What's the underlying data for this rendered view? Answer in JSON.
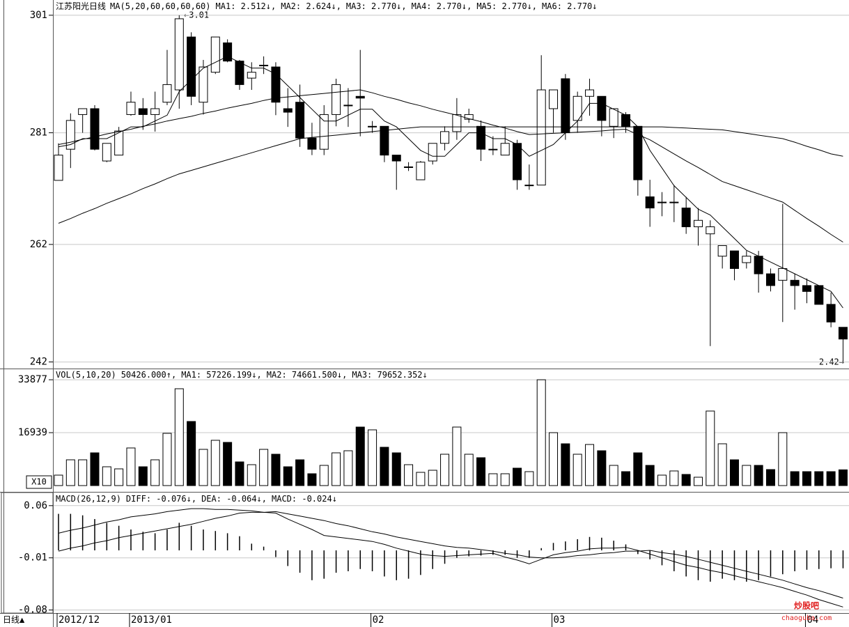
{
  "chart_data": [
    {
      "type": "candlestick",
      "title": "江苏阳光日线",
      "indicator": "MA(5,20,60,60,60,60)",
      "readouts": [
        "MA1: 2.512↓,",
        "MA2: 2.624↓,",
        "MA3: 2.770↓,",
        "MA4: 2.770↓,",
        "MA5: 2.770↓,",
        "MA6: 2.770↓"
      ],
      "annotations": [
        "←3.01",
        "2.42→"
      ],
      "categories": [
        "2012/12",
        null,
        null,
        null,
        null,
        null,
        "2013/01",
        null,
        null,
        null,
        null,
        null,
        null,
        null,
        null,
        null,
        null,
        null,
        null,
        null,
        null,
        null,
        null,
        null,
        null,
        null,
        "02",
        null,
        null,
        null,
        null,
        null,
        null,
        null,
        null,
        null,
        null,
        null,
        null,
        null,
        null,
        "03",
        null,
        null,
        null,
        null,
        null,
        null,
        null,
        null,
        null,
        null,
        null,
        null,
        null,
        null,
        null,
        null,
        null,
        null,
        null,
        null,
        "04",
        null,
        null,
        null
      ],
      "open": [
        2.729,
        2.782,
        2.841,
        2.851,
        2.762,
        2.772,
        2.841,
        2.851,
        2.841,
        2.862,
        2.883,
        2.973,
        2.862,
        2.913,
        2.963,
        2.932,
        2.903,
        2.925,
        2.922,
        2.851,
        2.862,
        2.801,
        2.782,
        2.841,
        2.857,
        2.872,
        2.821,
        2.821,
        2.772,
        2.752,
        2.73,
        2.762,
        2.792,
        2.812,
        2.833,
        2.821,
        2.782,
        2.772,
        2.792,
        2.721,
        2.721,
        2.851,
        2.902,
        2.831,
        2.872,
        2.872,
        2.821,
        2.841,
        2.821,
        2.701,
        2.692,
        2.692,
        2.682,
        2.65,
        2.638,
        2.6,
        2.609,
        2.589,
        2.6,
        2.57,
        2.559,
        2.559,
        2.55,
        2.55,
        2.518,
        2.479
      ],
      "high": [
        2.792,
        2.843,
        2.851,
        2.857,
        2.792,
        2.82,
        2.88,
        2.869,
        2.88,
        2.951,
        3.01,
        2.981,
        2.934,
        2.973,
        2.969,
        2.934,
        2.93,
        2.94,
        2.93,
        2.886,
        2.892,
        2.827,
        2.857,
        2.902,
        2.886,
        2.951,
        2.83,
        2.821,
        2.772,
        2.76,
        2.762,
        2.792,
        2.821,
        2.869,
        2.851,
        2.831,
        2.804,
        2.821,
        2.798,
        2.756,
        2.942,
        2.883,
        2.91,
        2.88,
        2.902,
        2.872,
        2.851,
        2.845,
        2.821,
        2.73,
        2.709,
        2.721,
        2.701,
        2.682,
        2.661,
        2.618,
        2.609,
        2.609,
        2.609,
        2.579,
        2.689,
        2.57,
        2.562,
        2.55,
        2.538,
        2.479
      ],
      "low": [
        2.729,
        2.75,
        2.81,
        2.78,
        2.76,
        2.772,
        2.839,
        2.815,
        2.812,
        2.857,
        2.851,
        2.857,
        2.841,
        2.91,
        2.93,
        2.883,
        2.883,
        2.91,
        2.84,
        2.82,
        2.786,
        2.772,
        2.772,
        2.821,
        2.82,
        2.804,
        2.81,
        2.76,
        2.713,
        2.745,
        2.73,
        2.756,
        2.78,
        2.798,
        2.827,
        2.762,
        2.772,
        2.772,
        2.713,
        2.713,
        2.721,
        2.81,
        2.798,
        2.81,
        2.839,
        2.804,
        2.801,
        2.81,
        2.703,
        2.65,
        2.668,
        2.658,
        2.638,
        2.618,
        2.447,
        2.579,
        2.559,
        2.579,
        2.538,
        2.54,
        2.488,
        2.509,
        2.52,
        2.518,
        2.479,
        2.42
      ],
      "close": [
        2.772,
        2.831,
        2.851,
        2.782,
        2.792,
        2.813,
        2.862,
        2.841,
        2.851,
        2.892,
        3.004,
        2.872,
        2.922,
        2.973,
        2.932,
        2.892,
        2.913,
        2.925,
        2.862,
        2.845,
        2.801,
        2.782,
        2.841,
        2.892,
        2.857,
        2.869,
        2.821,
        2.772,
        2.762,
        2.752,
        2.76,
        2.792,
        2.812,
        2.841,
        2.841,
        2.782,
        2.782,
        2.792,
        2.73,
        2.721,
        2.883,
        2.883,
        2.81,
        2.872,
        2.883,
        2.831,
        2.851,
        2.821,
        2.73,
        2.682,
        2.692,
        2.692,
        2.65,
        2.661,
        2.65,
        2.618,
        2.579,
        2.6,
        2.57,
        2.55,
        2.579,
        2.55,
        2.54,
        2.518,
        2.488,
        2.459
      ],
      "series": [
        {
          "color": "#000000",
          "values": [
            2.786,
            2.79,
            2.8,
            2.8,
            2.8,
            2.81,
            2.82,
            2.82,
            2.83,
            2.84,
            2.88,
            2.9,
            2.92,
            2.93,
            2.94,
            2.93,
            2.92,
            2.92,
            2.91,
            2.89,
            2.87,
            2.85,
            2.83,
            2.83,
            2.84,
            2.85,
            2.85,
            2.83,
            2.82,
            2.8,
            2.78,
            2.77,
            2.77,
            2.79,
            2.81,
            2.81,
            2.8,
            2.8,
            2.79,
            2.77,
            2.78,
            2.79,
            2.81,
            2.83,
            2.86,
            2.86,
            2.85,
            2.84,
            2.82,
            2.78,
            2.75,
            2.72,
            2.7,
            2.68,
            2.67,
            2.65,
            2.63,
            2.61,
            2.6,
            2.59,
            2.58,
            2.57,
            2.56,
            2.55,
            2.54,
            2.512
          ]
        },
        {
          "color": "#000000",
          "values": [
            2.79,
            2.794,
            2.799,
            2.803,
            2.808,
            2.812,
            2.816,
            2.821,
            2.825,
            2.83,
            2.834,
            2.838,
            2.843,
            2.847,
            2.852,
            2.856,
            2.86,
            2.865,
            2.869,
            2.871,
            2.873,
            2.875,
            2.877,
            2.879,
            2.881,
            2.883,
            2.878,
            2.872,
            2.867,
            2.861,
            2.856,
            2.85,
            2.845,
            2.84,
            2.834,
            2.829,
            2.823,
            2.818,
            2.812,
            2.807,
            2.808,
            2.809,
            2.81,
            2.811,
            2.812,
            2.813,
            2.815,
            2.816,
            2.807,
            2.798,
            2.786,
            2.774,
            2.762,
            2.751,
            2.739,
            2.727,
            2.72,
            2.713,
            2.706,
            2.699,
            2.692,
            2.678,
            2.664,
            2.651,
            2.637,
            2.624
          ]
        },
        {
          "color": "#000000",
          "values": [
            2.656,
            2.664,
            2.673,
            2.681,
            2.69,
            2.698,
            2.706,
            2.715,
            2.723,
            2.732,
            2.74,
            2.746,
            2.752,
            2.758,
            2.764,
            2.77,
            2.776,
            2.782,
            2.788,
            2.794,
            2.8,
            2.802,
            2.804,
            2.806,
            2.808,
            2.81,
            2.812,
            2.814,
            2.816,
            2.818,
            2.82,
            2.82,
            2.82,
            2.82,
            2.82,
            2.82,
            2.82,
            2.82,
            2.82,
            2.82,
            2.82,
            2.82,
            2.82,
            2.82,
            2.82,
            2.82,
            2.82,
            2.82,
            2.82,
            2.82,
            2.82,
            2.819,
            2.818,
            2.817,
            2.816,
            2.815,
            2.812,
            2.809,
            2.806,
            2.803,
            2.8,
            2.794,
            2.787,
            2.781,
            2.774,
            2.77
          ]
        }
      ],
      "ylim": [
        2.41,
        3.03
      ],
      "yticks": [
        {
          "value": 2.42,
          "label": "242"
        },
        {
          "value": 2.62,
          "label": "262"
        },
        {
          "value": 2.81,
          "label": "281"
        },
        {
          "value": 3.01,
          "label": "301"
        }
      ],
      "grid": true
    },
    {
      "type": "bar",
      "title": "VOL(5,10,20)",
      "readouts": [
        "50426.000↑,",
        "MA1: 57226.199↓,",
        "MA2: 74661.500↓,",
        "MA3: 79652.352↓"
      ],
      "unit_label": "X10",
      "values": [
        3345,
        8251,
        8251,
        10481,
        6021,
        5352,
        12042,
        6021,
        8251,
        16725,
        30997,
        20516,
        11596,
        14495,
        13826,
        7582,
        6690,
        11596,
        10035,
        6021,
        8251,
        3791,
        6467,
        10481,
        11150,
        18732,
        17840,
        12265,
        10481,
        6690,
        4237,
        4906,
        10035,
        18732,
        10035,
        8920,
        3791,
        3791,
        5575,
        4460,
        33877,
        16939,
        13380,
        10035,
        13157,
        11150,
        6467,
        4460,
        10481,
        6467,
        3345,
        4683,
        3568,
        2676,
        23861,
        13380,
        8251,
        6467,
        6467,
        5129,
        16939,
        4460,
        4460,
        4460,
        4460,
        5043
      ],
      "ylim": [
        0,
        35680
      ],
      "yticks": [
        16939,
        33877
      ],
      "grid": true
    },
    {
      "type": "macd",
      "title": "MACD(26,12,9)",
      "readouts": [
        "DIFF: -0.076↓,",
        "DEA: -0.064↓,",
        "MACD: -0.024↓"
      ],
      "values": [
        0.049,
        0.049,
        0.047,
        0.042,
        0.037,
        0.033,
        0.028,
        0.025,
        0.023,
        0.028,
        0.037,
        0.033,
        0.028,
        0.026,
        0.023,
        0.019,
        0.009,
        0.005,
        -0.009,
        -0.021,
        -0.03,
        -0.04,
        -0.038,
        -0.03,
        -0.028,
        -0.025,
        -0.028,
        -0.035,
        -0.04,
        -0.038,
        -0.033,
        -0.025,
        -0.018,
        -0.01,
        -0.008,
        -0.007,
        -0.006,
        -0.006,
        -0.01,
        -0.01,
        0.003,
        0.01,
        0.012,
        0.015,
        0.018,
        0.017,
        0.013,
        0.008,
        -0.005,
        -0.012,
        -0.02,
        -0.028,
        -0.035,
        -0.04,
        -0.042,
        -0.038,
        -0.04,
        -0.042,
        -0.04,
        -0.035,
        -0.032,
        -0.028,
        -0.026,
        -0.025,
        -0.024,
        -0.024
      ],
      "series": [
        {
          "color": "#000000",
          "values": [
            0.023,
            0.027,
            0.03,
            0.034,
            0.038,
            0.041,
            0.045,
            0.047,
            0.049,
            0.052,
            0.054,
            0.056,
            0.056,
            0.055,
            0.055,
            0.054,
            0.053,
            0.051,
            0.05,
            0.042,
            0.035,
            0.028,
            0.02,
            0.018,
            0.016,
            0.014,
            0.012,
            0.008,
            0.003,
            -0.001,
            -0.005,
            -0.007,
            -0.008,
            -0.007,
            -0.006,
            -0.005,
            -0.004,
            -0.009,
            -0.013,
            -0.018,
            -0.012,
            -0.006,
            -0.003,
            -0.001,
            0.002,
            0.003,
            0.003,
            0.004,
            0,
            -0.005,
            -0.01,
            -0.015,
            -0.02,
            -0.023,
            -0.027,
            -0.03,
            -0.034,
            -0.038,
            -0.042,
            -0.046,
            -0.05,
            -0.055,
            -0.06,
            -0.066,
            -0.071,
            -0.076
          ]
        },
        {
          "color": "#000000",
          "values": [
            -0.001,
            0.003,
            0.006,
            0.01,
            0.013,
            0.017,
            0.02,
            0.023,
            0.026,
            0.029,
            0.032,
            0.035,
            0.039,
            0.043,
            0.046,
            0.05,
            0.051,
            0.051,
            0.052,
            0.049,
            0.046,
            0.043,
            0.04,
            0.036,
            0.033,
            0.029,
            0.025,
            0.022,
            0.018,
            0.015,
            0.012,
            0.009,
            0.006,
            0.004,
            0.003,
            0.001,
            -0.001,
            -0.004,
            -0.006,
            -0.009,
            -0.01,
            -0.01,
            -0.009,
            -0.007,
            -0.006,
            -0.004,
            -0.003,
            -0.001,
            -0.001,
            0,
            -0.003,
            -0.005,
            -0.008,
            -0.012,
            -0.016,
            -0.02,
            -0.024,
            -0.028,
            -0.032,
            -0.036,
            -0.04,
            -0.045,
            -0.05,
            -0.054,
            -0.059,
            -0.064
          ]
        }
      ],
      "ylim": [
        -0.0841,
        0.0729
      ],
      "yticks": [
        0.06,
        -0.01,
        -0.08
      ],
      "grid": true
    }
  ],
  "footer": {
    "period": "日线▲",
    "watermark": "炒股吧",
    "watermark_url": "chaoguba.com"
  }
}
